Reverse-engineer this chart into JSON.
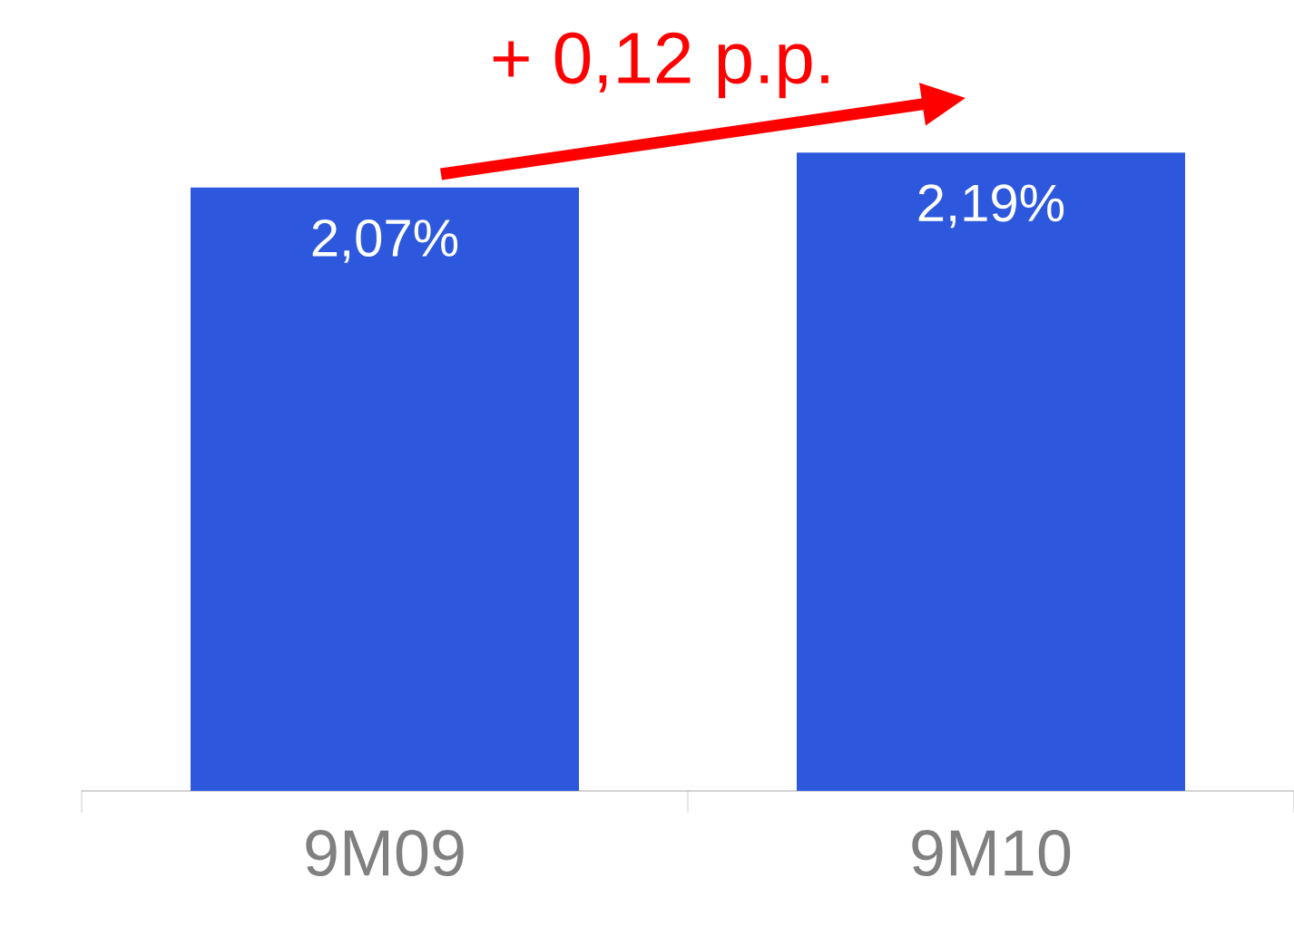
{
  "chart_data": {
    "type": "bar",
    "categories": [
      "9M09",
      "9M10"
    ],
    "values": [
      2.07,
      2.19
    ],
    "value_labels": [
      "2,07%",
      "2,19%"
    ],
    "color": "#2d58dd",
    "annotations": [
      "+ 0,12 p.p."
    ]
  }
}
